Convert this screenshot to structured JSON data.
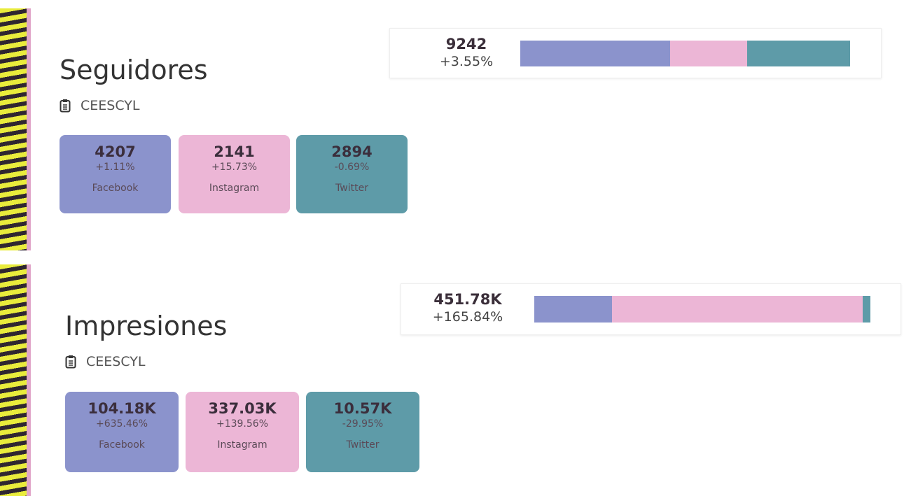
{
  "chart_data": [
    {
      "type": "stacked-bar",
      "title": "Seguidores",
      "subtitle": "CEESCYL",
      "total": 9242,
      "total_change": "+3.55%",
      "series": [
        {
          "name": "Facebook",
          "color": "#8b93cc",
          "values": [
            4207
          ],
          "change": "+1.11%"
        },
        {
          "name": "Instagram",
          "color": "#ecb6d6",
          "values": [
            2141
          ],
          "change": "+15.73%"
        },
        {
          "name": "Twitter",
          "color": "#5e9ba8",
          "values": [
            2894
          ],
          "change": "-0.69%"
        }
      ]
    },
    {
      "type": "stacked-bar",
      "title": "Impresiones",
      "subtitle": "CEESCYL",
      "total": 451780,
      "total_label": "451.78K",
      "total_change": "+165.84%",
      "series": [
        {
          "name": "Facebook",
          "color": "#8b93cc",
          "values": [
            104180
          ],
          "value_labels": [
            "104.18K"
          ],
          "change": "+635.46%"
        },
        {
          "name": "Instagram",
          "color": "#ecb6d6",
          "values": [
            337030
          ],
          "value_labels": [
            "337.03K"
          ],
          "change": "+139.56%"
        },
        {
          "name": "Twitter",
          "color": "#5e9ba8",
          "values": [
            10570
          ],
          "value_labels": [
            "10.57K"
          ],
          "change": "-29.95%"
        }
      ]
    }
  ]
}
